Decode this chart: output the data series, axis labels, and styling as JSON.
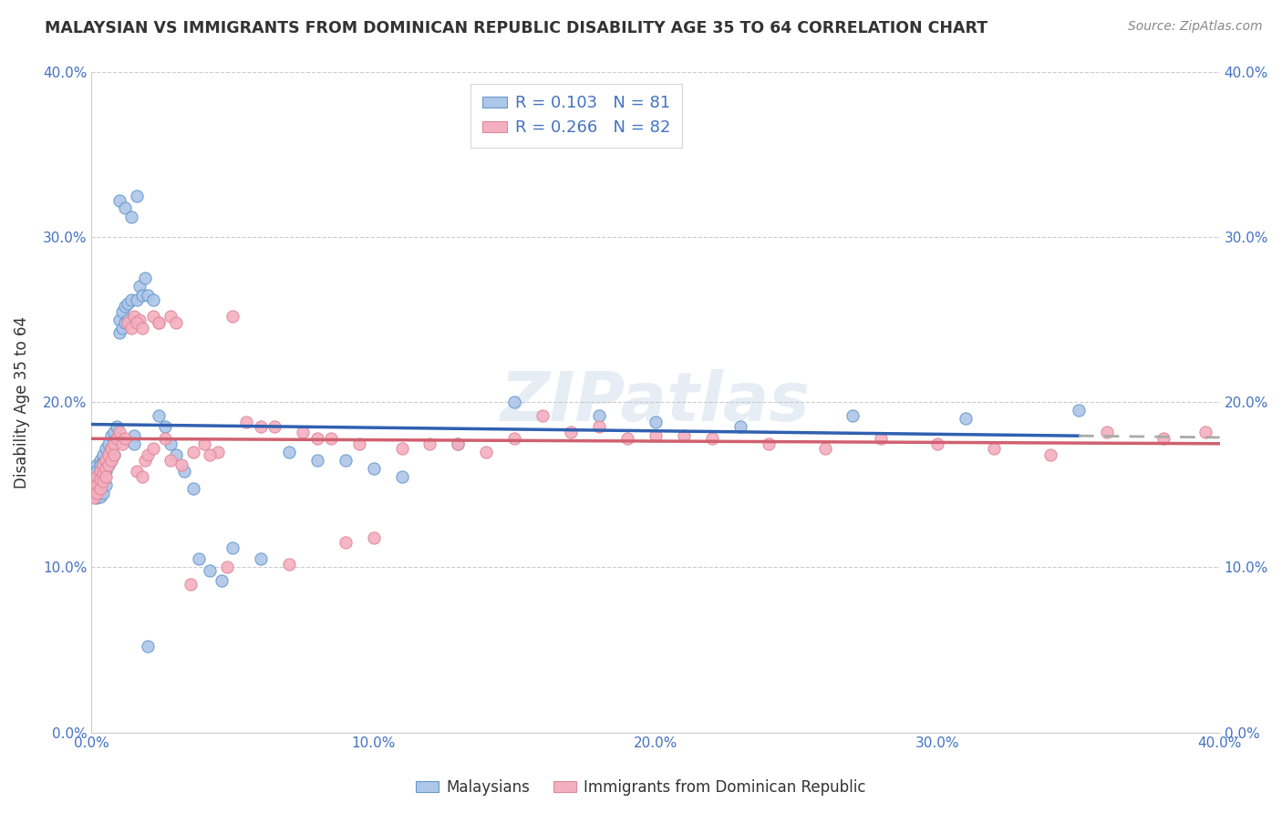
{
  "title": "MALAYSIAN VS IMMIGRANTS FROM DOMINICAN REPUBLIC DISABILITY AGE 35 TO 64 CORRELATION CHART",
  "source": "Source: ZipAtlas.com",
  "ylabel": "Disability Age 35 to 64",
  "xlim": [
    0.0,
    0.4
  ],
  "ylim": [
    0.0,
    0.4
  ],
  "xtick_positions": [
    0.0,
    0.1,
    0.2,
    0.3,
    0.4
  ],
  "xtick_labels": [
    "0.0%",
    "10.0%",
    "20.0%",
    "30.0%",
    "40.0%"
  ],
  "ytick_positions": [
    0.0,
    0.1,
    0.2,
    0.3,
    0.4
  ],
  "ytick_labels": [
    "0.0%",
    "10.0%",
    "20.0%",
    "30.0%",
    "40.0%"
  ],
  "blue_R": 0.103,
  "blue_N": 81,
  "pink_R": 0.266,
  "pink_N": 82,
  "blue_fill_color": "#aec6e8",
  "pink_fill_color": "#f4afc0",
  "blue_edge_color": "#6699cc",
  "pink_edge_color": "#e08898",
  "blue_line_color": "#3060b0",
  "pink_line_color": "#d06070",
  "title_color": "#333333",
  "tick_color": "#4472c4",
  "watermark": "ZIPatlas",
  "blue_scatter_x": [
    0.001,
    0.001,
    0.001,
    0.001,
    0.002,
    0.002,
    0.002,
    0.002,
    0.002,
    0.003,
    0.003,
    0.003,
    0.003,
    0.003,
    0.003,
    0.004,
    0.004,
    0.004,
    0.004,
    0.004,
    0.005,
    0.005,
    0.005,
    0.005,
    0.006,
    0.006,
    0.006,
    0.007,
    0.007,
    0.007,
    0.008,
    0.008,
    0.008,
    0.009,
    0.009,
    0.01,
    0.01,
    0.011,
    0.011,
    0.012,
    0.012,
    0.013,
    0.013,
    0.014,
    0.015,
    0.015,
    0.016,
    0.017,
    0.018,
    0.019,
    0.02,
    0.022,
    0.024,
    0.026,
    0.028,
    0.03,
    0.033,
    0.036,
    0.038,
    0.042,
    0.046,
    0.05,
    0.06,
    0.07,
    0.08,
    0.09,
    0.1,
    0.11,
    0.13,
    0.15,
    0.18,
    0.2,
    0.23,
    0.27,
    0.31,
    0.35,
    0.01,
    0.012,
    0.014,
    0.016,
    0.02
  ],
  "blue_scatter_y": [
    0.155,
    0.15,
    0.148,
    0.145,
    0.162,
    0.158,
    0.152,
    0.148,
    0.142,
    0.165,
    0.162,
    0.158,
    0.152,
    0.148,
    0.143,
    0.168,
    0.163,
    0.158,
    0.152,
    0.145,
    0.172,
    0.165,
    0.158,
    0.15,
    0.175,
    0.168,
    0.162,
    0.18,
    0.172,
    0.165,
    0.182,
    0.175,
    0.168,
    0.185,
    0.178,
    0.25,
    0.242,
    0.255,
    0.245,
    0.258,
    0.248,
    0.26,
    0.25,
    0.262,
    0.18,
    0.175,
    0.262,
    0.27,
    0.265,
    0.275,
    0.265,
    0.262,
    0.192,
    0.185,
    0.175,
    0.168,
    0.158,
    0.148,
    0.105,
    0.098,
    0.092,
    0.112,
    0.105,
    0.17,
    0.165,
    0.165,
    0.16,
    0.155,
    0.175,
    0.2,
    0.192,
    0.188,
    0.185,
    0.192,
    0.19,
    0.195,
    0.322,
    0.318,
    0.312,
    0.325,
    0.052
  ],
  "pink_scatter_x": [
    0.001,
    0.001,
    0.001,
    0.002,
    0.002,
    0.002,
    0.003,
    0.003,
    0.003,
    0.004,
    0.004,
    0.004,
    0.005,
    0.005,
    0.005,
    0.006,
    0.006,
    0.007,
    0.007,
    0.008,
    0.008,
    0.009,
    0.01,
    0.011,
    0.012,
    0.013,
    0.014,
    0.015,
    0.016,
    0.017,
    0.018,
    0.019,
    0.02,
    0.022,
    0.024,
    0.026,
    0.028,
    0.03,
    0.035,
    0.04,
    0.045,
    0.05,
    0.06,
    0.07,
    0.08,
    0.09,
    0.1,
    0.12,
    0.14,
    0.16,
    0.18,
    0.2,
    0.22,
    0.24,
    0.26,
    0.28,
    0.3,
    0.32,
    0.34,
    0.36,
    0.38,
    0.395,
    0.016,
    0.018,
    0.022,
    0.024,
    0.028,
    0.032,
    0.036,
    0.042,
    0.048,
    0.055,
    0.065,
    0.075,
    0.085,
    0.095,
    0.11,
    0.13,
    0.15,
    0.17,
    0.19,
    0.21
  ],
  "pink_scatter_y": [
    0.152,
    0.148,
    0.142,
    0.155,
    0.15,
    0.145,
    0.158,
    0.153,
    0.148,
    0.162,
    0.157,
    0.152,
    0.165,
    0.16,
    0.155,
    0.168,
    0.162,
    0.172,
    0.165,
    0.175,
    0.168,
    0.178,
    0.182,
    0.175,
    0.178,
    0.248,
    0.245,
    0.252,
    0.158,
    0.25,
    0.155,
    0.165,
    0.168,
    0.172,
    0.248,
    0.178,
    0.252,
    0.248,
    0.09,
    0.175,
    0.17,
    0.252,
    0.185,
    0.102,
    0.178,
    0.115,
    0.118,
    0.175,
    0.17,
    0.192,
    0.185,
    0.18,
    0.178,
    0.175,
    0.172,
    0.178,
    0.175,
    0.172,
    0.168,
    0.182,
    0.178,
    0.182,
    0.248,
    0.245,
    0.252,
    0.248,
    0.165,
    0.162,
    0.17,
    0.168,
    0.1,
    0.188,
    0.185,
    0.182,
    0.178,
    0.175,
    0.172,
    0.175,
    0.178,
    0.182,
    0.178,
    0.18
  ]
}
